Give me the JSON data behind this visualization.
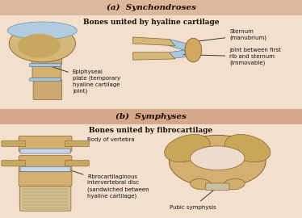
{
  "title_a": "(a)  Synchondroses",
  "subtitle_a": "Bones united by hyaline cartilage",
  "title_b": "(b)  Symphyses",
  "subtitle_b": "Bones united by fibrocartilage",
  "bg_top": "#f2e0cc",
  "bg_bottom": "#eddccc",
  "header_bg_top": "#dcb89a",
  "header_bg_bottom": "#d4a888",
  "text_color": "#1a0a00",
  "label_color": "#111111",
  "bone_color": "#dfc090",
  "bone_edge": "#8a6030",
  "cartilage_color": "#a8c8e0",
  "cartilage_edge": "#607890",
  "disc_color": "#c8d8e8",
  "figsize": [
    3.74,
    2.7
  ],
  "dpi": 100
}
